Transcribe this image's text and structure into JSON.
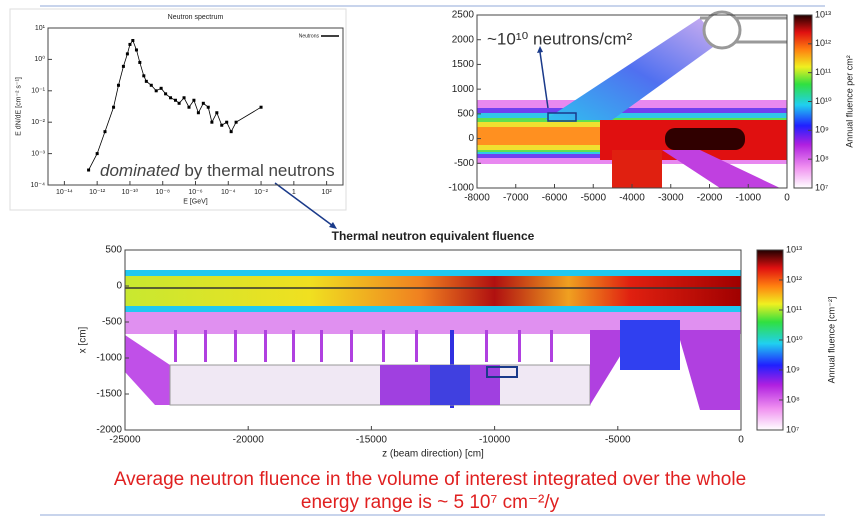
{
  "chart_data": [
    {
      "type": "scatter",
      "title": "Neutron spectrum",
      "x_label": "E [GeV]",
      "y_label": "E dN/dE [cm⁻² s⁻¹]",
      "log_x": true,
      "log_y": true,
      "xlim": [
        1e-15,
        1000
      ],
      "ylim": [
        0.0001,
        10
      ],
      "xticks": [
        {
          "value": 1e-14,
          "label": "10⁻¹⁴"
        },
        {
          "value": 1e-12,
          "label": "10⁻¹²"
        },
        {
          "value": 1e-10,
          "label": "10⁻¹⁰"
        },
        {
          "value": 1e-08,
          "label": "10⁻⁸"
        },
        {
          "value": 1e-06,
          "label": "10⁻⁶"
        },
        {
          "value": 0.0001,
          "label": "10⁻⁴"
        },
        {
          "value": 0.01,
          "label": "10⁻²"
        },
        1,
        {
          "value": 100,
          "label": "10²"
        }
      ],
      "yticks": [
        {
          "value": 0.0001,
          "label": "10⁻⁴"
        },
        {
          "value": 0.001,
          "label": "10⁻³"
        },
        {
          "value": 0.01,
          "label": "10⁻²"
        },
        {
          "value": 0.1,
          "label": "10⁻¹"
        },
        {
          "value": 1,
          "label": "10⁰"
        },
        {
          "value": 10,
          "label": "10¹"
        }
      ],
      "legend": "upper right",
      "series": [
        {
          "name": "Neutrons",
          "color": "#000000",
          "x": [
            3e-13,
            1e-12,
            3e-12,
            1e-11,
            2e-11,
            4e-11,
            7e-11,
            1e-10,
            1.5e-10,
            2.5e-10,
            4e-10,
            7e-10,
            1e-09,
            2e-09,
            4e-09,
            8e-09,
            1.5e-08,
            3e-08,
            6e-08,
            1e-07,
            2e-07,
            4e-07,
            8e-07,
            1.5e-06,
            3e-06,
            6e-06,
            1e-05,
            2e-05,
            4e-05,
            8e-05,
            0.00015,
            0.0003,
            0.01
          ],
          "values": [
            0.0003,
            0.001,
            0.005,
            0.03,
            0.15,
            0.6,
            1.5,
            3,
            4,
            2,
            0.8,
            0.3,
            0.2,
            0.15,
            0.1,
            0.12,
            0.08,
            0.06,
            0.05,
            0.04,
            0.06,
            0.03,
            0.05,
            0.02,
            0.04,
            0.03,
            0.01,
            0.02,
            0.008,
            0.01,
            0.005,
            0.01,
            0.03
          ]
        }
      ],
      "annotation": {
        "emphasis": "dominated",
        "text": "by thermal neutrons"
      }
    },
    {
      "type": "heatmap",
      "annotation": "~10¹⁰ neutrons/cm²",
      "xlim": [
        -8000,
        0
      ],
      "ylim": [
        -1000,
        2500
      ],
      "xticks": [
        -8000,
        -7000,
        -6000,
        -5000,
        -4000,
        -3000,
        -2000,
        -1000,
        0
      ],
      "yticks": [
        -1000,
        -500,
        0,
        500,
        1000,
        1500,
        2000,
        2500
      ],
      "colorbar": {
        "label": "Annual fluence per cm²",
        "log": true,
        "lim": [
          10000000,
          10000000000000
        ],
        "ticks": [
          {
            "value": 10000000,
            "label": "10⁷"
          },
          {
            "value": 100000000,
            "label": "10⁸"
          },
          {
            "value": 1000000000,
            "label": "10⁹"
          },
          {
            "value": 10000000000,
            "label": "10¹⁰"
          },
          {
            "value": 100000000000,
            "label": "10¹¹"
          },
          {
            "value": 1000000000000,
            "label": "10¹²"
          },
          {
            "value": 10000000000000,
            "label": "10¹³"
          }
        ]
      }
    },
    {
      "type": "heatmap",
      "title": "Thermal neutron equivalent fluence",
      "x_label": "z (beam direction) [cm]",
      "y_label": "x [cm]",
      "xlim": [
        -25000,
        0
      ],
      "ylim": [
        -2000,
        500
      ],
      "xticks": [
        -25000,
        -20000,
        -15000,
        -10000,
        -5000,
        0
      ],
      "yticks": [
        -2000,
        -1500,
        -1000,
        -500,
        0,
        500
      ],
      "colorbar": {
        "label": "Annual fluence [cm⁻²]",
        "log": true,
        "lim": [
          10000000,
          10000000000000
        ],
        "ticks": [
          {
            "value": 10000000,
            "label": "10⁷"
          },
          {
            "value": 100000000,
            "label": "10⁸"
          },
          {
            "value": 1000000000,
            "label": "10⁹"
          },
          {
            "value": 10000000000,
            "label": "10¹⁰"
          },
          {
            "value": 100000000000,
            "label": "10¹¹"
          },
          {
            "value": 1000000000000,
            "label": "10¹²"
          },
          {
            "value": 10000000000000,
            "label": "10¹³"
          }
        ]
      }
    }
  ],
  "caption": {
    "lines": [
      "Average neutron fluence in the volume of interest integrated over the whole",
      "energy range is ~ 5 10⁷ cm⁻²/y"
    ]
  }
}
